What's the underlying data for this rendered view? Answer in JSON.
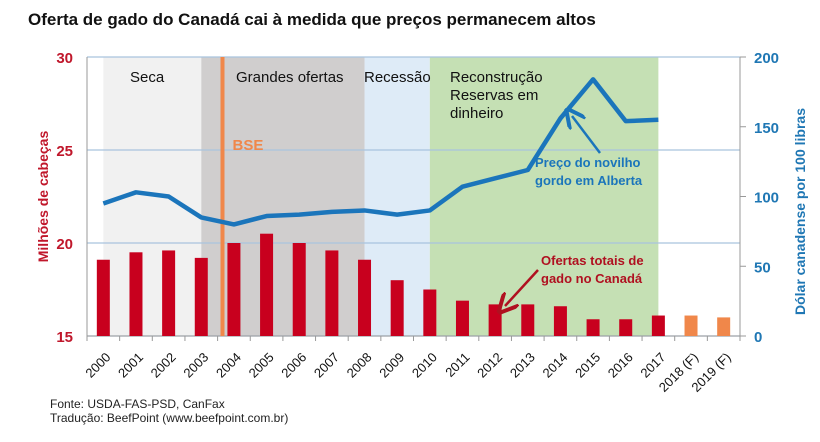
{
  "title": "Oferta de gado do Canadá cai à medida que preços permanecem altos",
  "source": "Fonte: USDA-FAS-PSD, CanFax",
  "translation": "Tradução: BeefPoint (www.beefpoint.com.br)",
  "chart_data": {
    "type": "bar+line",
    "categories": [
      "2000",
      "2001",
      "2002",
      "2003",
      "2004",
      "2005",
      "2006",
      "2007",
      "2008",
      "2009",
      "2010",
      "2011",
      "2012",
      "2013",
      "2014",
      "2015",
      "2016",
      "2017",
      "2018 (F)",
      "2019 (F)"
    ],
    "y_left": {
      "label": "Milhões de cabeças",
      "range": [
        15,
        30
      ],
      "ticks": [
        15,
        20,
        25,
        30
      ],
      "color": "#c0172b"
    },
    "y_right": {
      "label": "Dólar canadense por 100 libras",
      "range": [
        0,
        200
      ],
      "ticks": [
        0,
        50,
        100,
        150,
        200
      ],
      "color": "#1f77b4"
    },
    "grid": true,
    "series": [
      {
        "name": "Ofertas totais de gado no Canadá",
        "type": "bar",
        "axis": "left",
        "color": "#c8001e",
        "forecast_color": "#f0874a",
        "values": [
          19.1,
          19.5,
          19.6,
          19.2,
          20.0,
          20.5,
          20.0,
          19.6,
          19.1,
          18.0,
          17.5,
          16.9,
          16.7,
          16.7,
          16.6,
          15.9,
          15.9,
          16.1,
          16.1,
          16.0
        ]
      },
      {
        "name": "Preço do novilho gordo em Alberta",
        "type": "line",
        "axis": "right",
        "color": "#1b75bb",
        "values": [
          95,
          103,
          100,
          85,
          80,
          86,
          87,
          89,
          90,
          87,
          90,
          107,
          113,
          119,
          156,
          184,
          154,
          155,
          null,
          null
        ]
      }
    ],
    "periods": [
      {
        "label": "Seca",
        "from": "2000",
        "to": "2003",
        "color": "#f1f1f1"
      },
      {
        "label": "Grandes ofertas",
        "from": "2003",
        "to": "2008",
        "color": "#d0cece"
      },
      {
        "label": "Recessão",
        "from": "2008",
        "to": "2010",
        "color": "#deebf7"
      },
      {
        "label": "Reconstrução\nReservas em\ndinheiro",
        "from": "2010",
        "to": "2017",
        "color": "#c5e0b4"
      }
    ],
    "event": {
      "label": "BSE",
      "year": 2003.65,
      "color": "#f0874a"
    },
    "annotations": {
      "price": [
        "Preço do novilho",
        "gordo em Alberta"
      ],
      "supply": [
        "Ofertas totais de",
        "gado no Canadá"
      ]
    }
  }
}
